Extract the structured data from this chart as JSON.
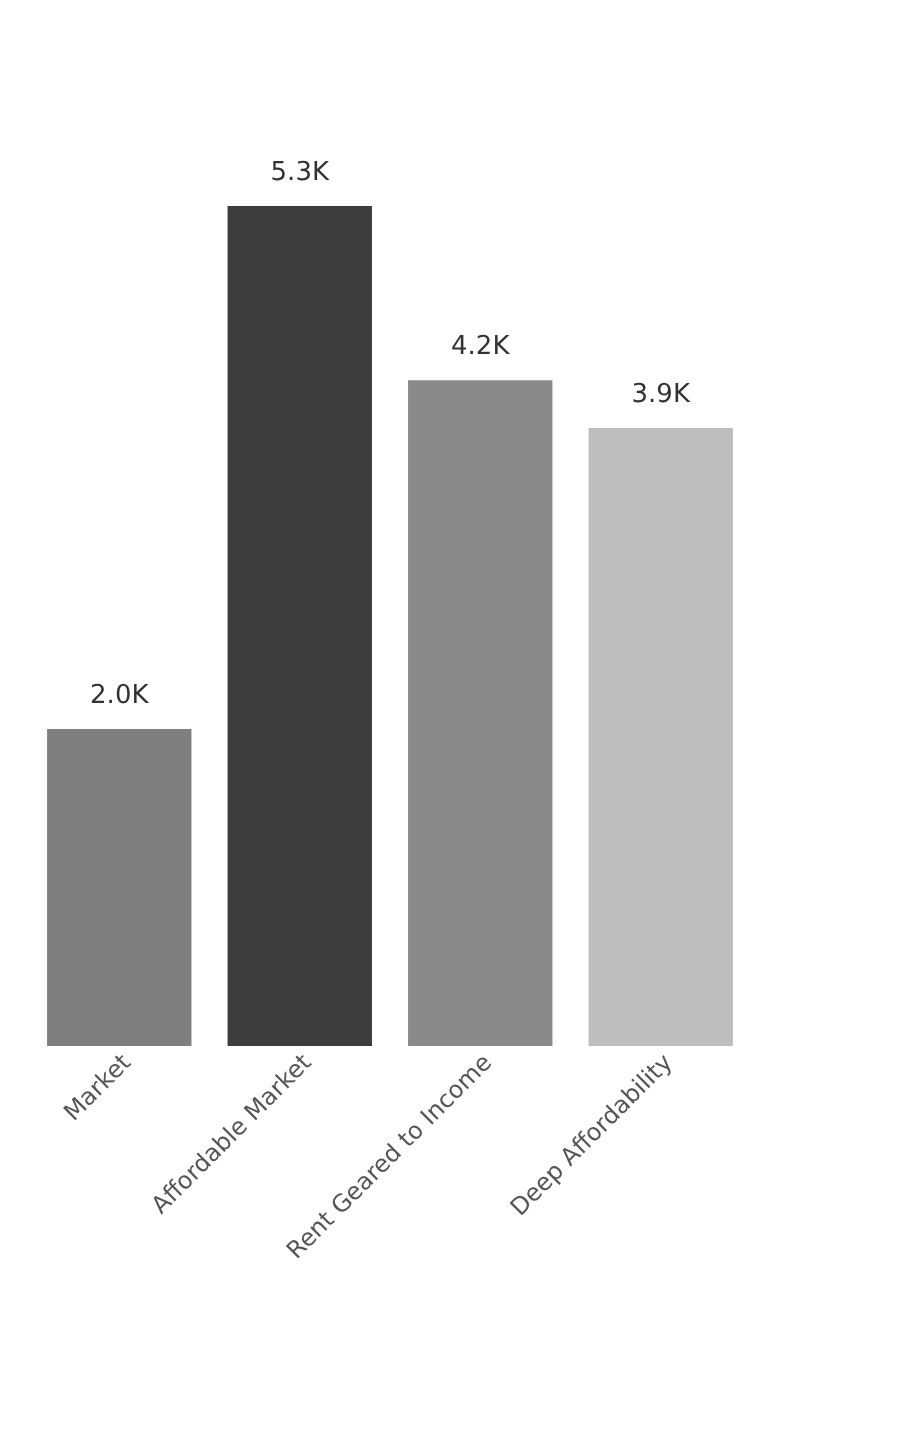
{
  "chart_data": {
    "type": "bar",
    "categories": [
      "Market",
      "Affordable Market",
      "Rent Geared to Income",
      "Deep Affordability"
    ],
    "values": [
      2000,
      5300,
      4200,
      3900
    ],
    "value_labels": [
      "2.0K",
      "5.3K",
      "4.2K",
      "3.9K"
    ],
    "colors": [
      "#7f7f7f",
      "#3c3c3c",
      "#8a8a8a",
      "#bebebe"
    ]
  }
}
